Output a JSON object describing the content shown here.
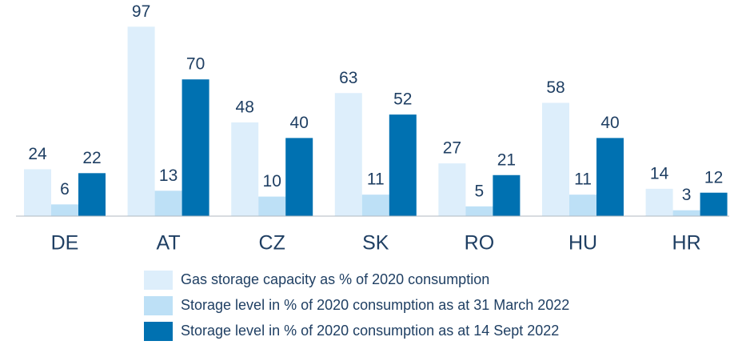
{
  "chart_data": {
    "type": "bar",
    "categories": [
      "DE",
      "AT",
      "CZ",
      "SK",
      "RO",
      "HU",
      "HR"
    ],
    "series": [
      {
        "name": "Gas storage capacity as % of 2020 consumption",
        "color": "#ddeefb",
        "values": [
          24,
          97,
          48,
          63,
          27,
          58,
          14
        ]
      },
      {
        "name": "Storage level in % of 2020 consumption as at 31 March 2022",
        "color": "#bde0f6",
        "values": [
          6,
          13,
          10,
          11,
          5,
          11,
          3
        ]
      },
      {
        "name": "Storage level in % of 2020 consumption as at 14 Sept 2022",
        "color": "#0071b1",
        "values": [
          22,
          70,
          40,
          52,
          21,
          40,
          12
        ]
      }
    ]
  }
}
